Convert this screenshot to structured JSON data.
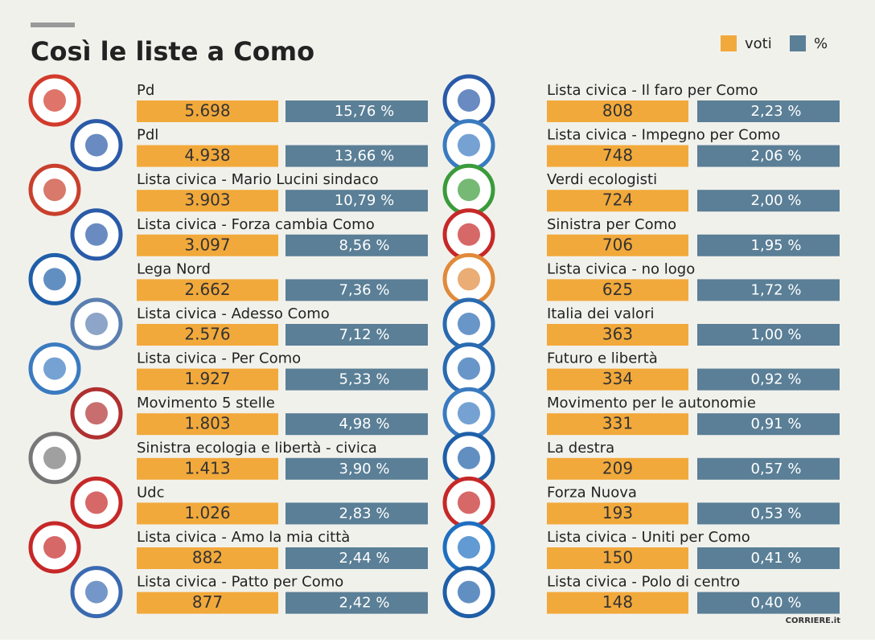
{
  "header": {
    "title": "Così le liste a Como",
    "legend": [
      "voti",
      "%"
    ]
  },
  "left": [
    {
      "name": "Pd",
      "votes": "5.698",
      "percent": "15,76 %"
    },
    {
      "name": "Pdl",
      "votes": "4.938",
      "percent": "13,66 %"
    },
    {
      "name": "Lista civica - Mario Lucini sindaco",
      "votes": "3.903",
      "percent": "10,79 %"
    },
    {
      "name": "Lista civica - Forza cambia Como",
      "votes": "3.097",
      "percent": "8,56 %"
    },
    {
      "name": "Lega Nord",
      "votes": "2.662",
      "percent": "7,36 %"
    },
    {
      "name": "Lista civica - Adesso Como",
      "votes": "2.576",
      "percent": "7,12 %"
    },
    {
      "name": "Lista civica - Per Como",
      "votes": "1.927",
      "percent": "5,33 %"
    },
    {
      "name": "Movimento 5 stelle",
      "votes": "1.803",
      "percent": "4,98 %"
    },
    {
      "name": "Sinistra ecologia e libertà - civica",
      "votes": "1.413",
      "percent": "3,90 %"
    },
    {
      "name": "Udc",
      "votes": "1.026",
      "percent": "2,83 %"
    },
    {
      "name": "Lista civica - Amo la mia città",
      "votes": "882",
      "percent": "2,44 %"
    },
    {
      "name": "Lista civica - Patto per Como",
      "votes": "877",
      "percent": "2,42 %"
    }
  ],
  "right": [
    {
      "name": "Lista civica - Il faro per Como",
      "votes": "808",
      "percent": "2,23 %"
    },
    {
      "name": "Lista civica - Impegno per Como",
      "votes": "748",
      "percent": "2,06 %"
    },
    {
      "name": "Verdi ecologisti",
      "votes": "724",
      "percent": "2,00 %"
    },
    {
      "name": "Sinistra per Como",
      "votes": "706",
      "percent": "1,95 %"
    },
    {
      "name": "Lista civica - no logo",
      "votes": "625",
      "percent": "1,72 %"
    },
    {
      "name": "Italia dei valori",
      "votes": "363",
      "percent": "1,00 %"
    },
    {
      "name": "Futuro e libertà",
      "votes": "334",
      "percent": "0,92 %"
    },
    {
      "name": "Movimento per le autonomie",
      "votes": "331",
      "percent": "0,91 %"
    },
    {
      "name": "La destra",
      "votes": "209",
      "percent": "0,57 %"
    },
    {
      "name": "Forza Nuova",
      "votes": "193",
      "percent": "0,53 %"
    },
    {
      "name": "Lista civica - Uniti per Como",
      "votes": "150",
      "percent": "0,41 %"
    },
    {
      "name": "Lista civica - Polo di centro",
      "votes": "148",
      "percent": "0,40 %"
    }
  ],
  "footer": {
    "credit": "CORRIERE.it"
  }
}
